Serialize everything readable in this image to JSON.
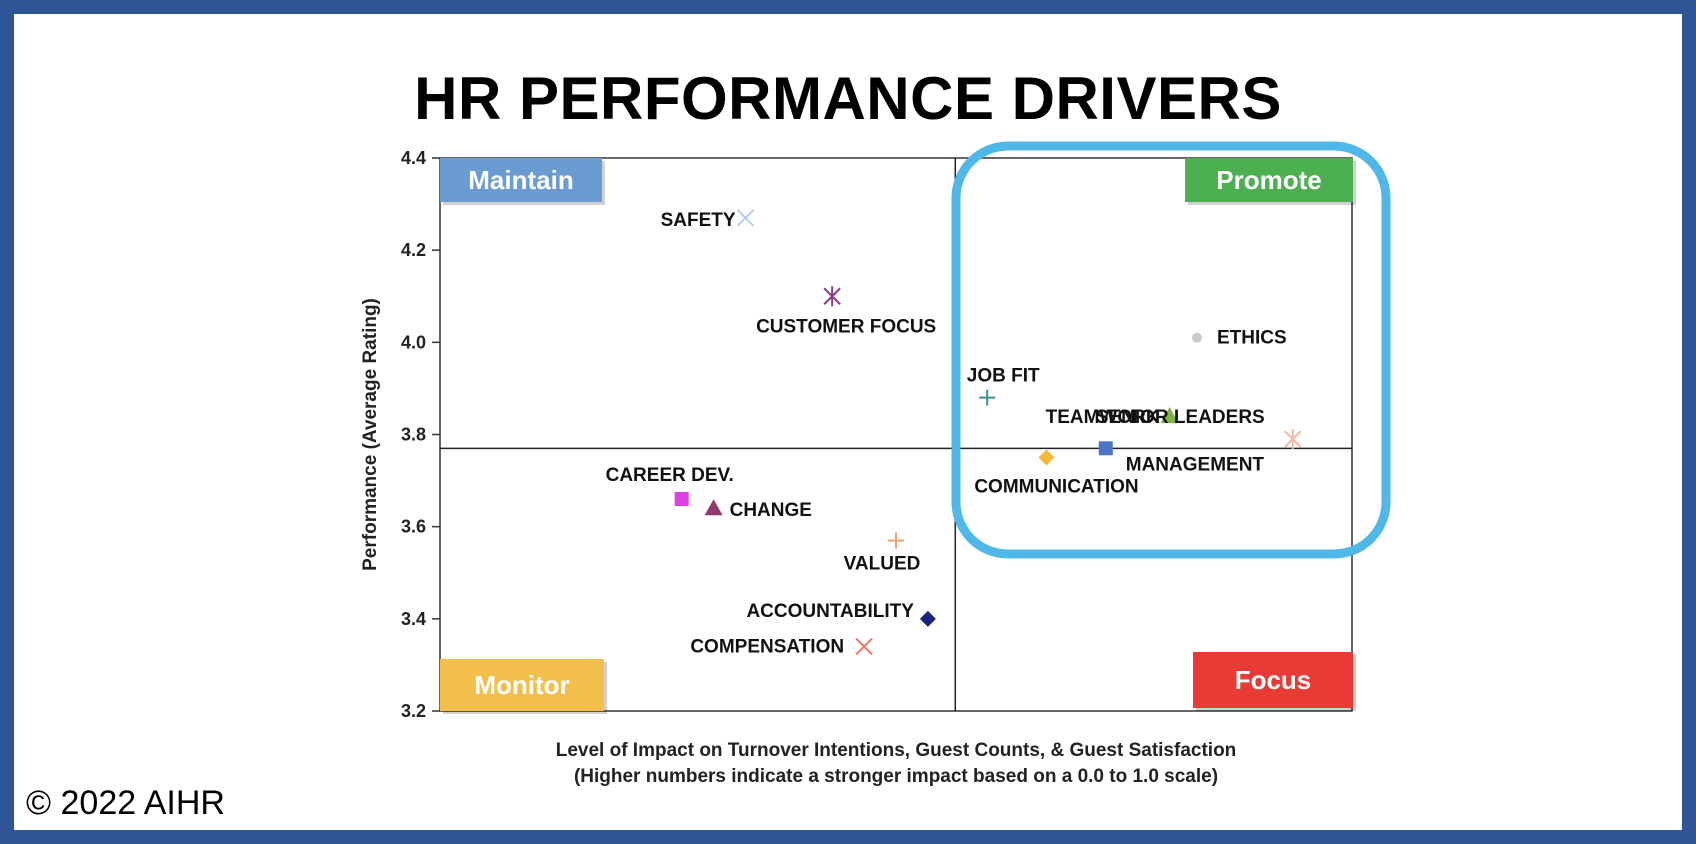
{
  "title": "HR PERFORMANCE DRIVERS",
  "copyright": "© 2022 AIHR",
  "colors": {
    "frame_border": "#2f5597",
    "maintain": "#6a9bd1",
    "promote": "#4caf50",
    "monitor": "#f2c04a",
    "focus": "#e83b35",
    "highlight": "#4fb8e8"
  },
  "chart_data": {
    "type": "scatter",
    "title": "HR PERFORMANCE DRIVERS",
    "xlabel": "Level of Impact on Turnover Intentions, Guest Counts, & Guest Satisfaction",
    "xlabel_note": "(Higher numbers indicate a stronger impact based on a 0.0 to 1.0 scale)",
    "ylabel": "Performance  (Average Rating)",
    "xlim": [
      0.0,
      1.0
    ],
    "ylim": [
      3.2,
      4.4
    ],
    "yticks": [
      "4.4",
      "4.2",
      "4.0",
      "3.8",
      "3.6",
      "3.4",
      "3.2"
    ],
    "x_divider": 0.565,
    "y_divider": 3.77,
    "grid": false,
    "quadrants": [
      {
        "name": "Maintain",
        "corner": "top-left",
        "color": "#6a9bd1"
      },
      {
        "name": "Promote",
        "corner": "top-right",
        "color": "#4caf50"
      },
      {
        "name": "Monitor",
        "corner": "bottom-left",
        "color": "#f2c04a"
      },
      {
        "name": "Focus",
        "corner": "bottom-right",
        "color": "#e83b35"
      }
    ],
    "points": [
      {
        "label": "SAFETY",
        "x": 0.335,
        "y": 4.27,
        "marker": "x",
        "color": "#b8cde8"
      },
      {
        "label": "CUSTOMER FOCUS",
        "x": 0.43,
        "y": 4.1,
        "marker": "star",
        "color": "#8e3a8e"
      },
      {
        "label": "ETHICS",
        "x": 0.83,
        "y": 4.01,
        "marker": "circle",
        "color": "#c8c8c8"
      },
      {
        "label": "JOB FIT",
        "x": 0.6,
        "y": 3.88,
        "marker": "plus",
        "color": "#3c8f9c"
      },
      {
        "label": "TEAMWORK",
        "x": 0.8,
        "y": 3.84,
        "marker": "triangle",
        "color": "#7cb342"
      },
      {
        "label": "SENIOR LEADERS",
        "x": 0.935,
        "y": 3.79,
        "marker": "star",
        "color": "#f4b6a6"
      },
      {
        "label": "MANAGEMENT",
        "x": 0.73,
        "y": 3.77,
        "marker": "square",
        "color": "#4a74c4"
      },
      {
        "label": "COMMUNICATION",
        "x": 0.665,
        "y": 3.75,
        "marker": "diamond",
        "color": "#f2b93b"
      },
      {
        "label": "CAREER DEV.",
        "x": 0.265,
        "y": 3.66,
        "marker": "square",
        "color": "#e040e0"
      },
      {
        "label": "CHANGE",
        "x": 0.3,
        "y": 3.64,
        "marker": "triangle",
        "color": "#8e3a6e"
      },
      {
        "label": "VALUED",
        "x": 0.5,
        "y": 3.57,
        "marker": "plus",
        "color": "#f0a070"
      },
      {
        "label": "ACCOUNTABILITY",
        "x": 0.535,
        "y": 3.4,
        "marker": "diamond",
        "color": "#1a237e"
      },
      {
        "label": "COMPENSATION",
        "x": 0.465,
        "y": 3.34,
        "marker": "x",
        "color": "#f07a6e"
      }
    ]
  }
}
